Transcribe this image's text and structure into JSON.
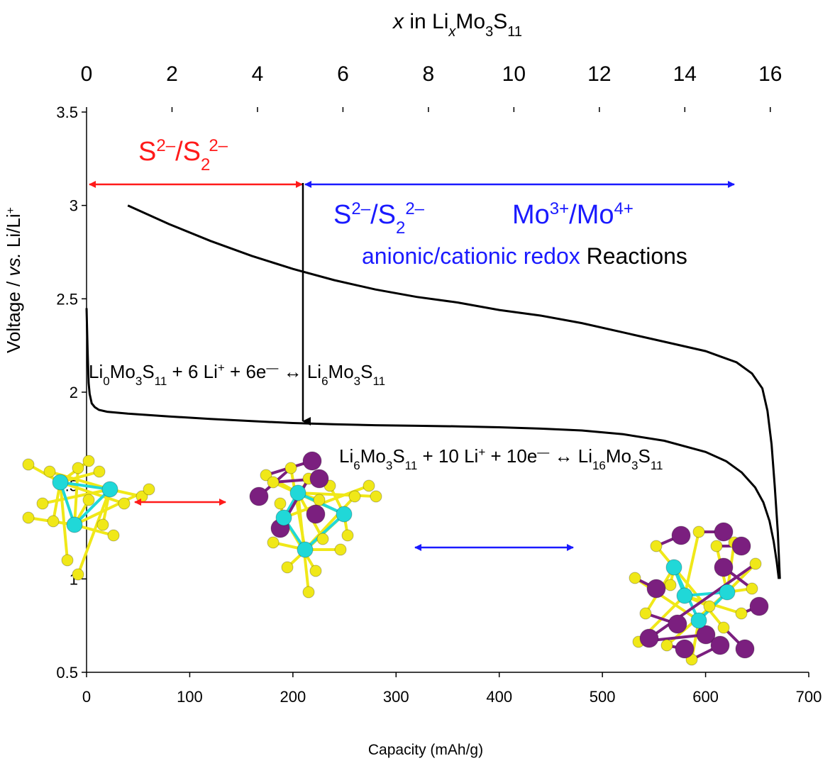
{
  "chart_data": {
    "type": "line",
    "title": "",
    "xlabel": "Capacity (mAh/g)",
    "ylabel": {
      "main": "Voltage / ",
      "italic": "vs.",
      "rest": " Li/Li",
      "sup": "+"
    },
    "xlim": [
      0,
      700
    ],
    "ylim": [
      0.5,
      3.5
    ],
    "x_ticks": [
      "0",
      "100",
      "200",
      "300",
      "400",
      "500",
      "600",
      "700"
    ],
    "y_ticks": [
      "0.5",
      "1",
      "1.5",
      "2",
      "2.5",
      "3",
      "3.5"
    ],
    "top_axis": {
      "label": {
        "italic_x": "x",
        "text1": " in Li",
        "sub_italic": "x",
        "text2": "Mo",
        "sub1": "3",
        "text3": "S",
        "sub2": "11"
      },
      "range": [
        0,
        16.2
      ],
      "ticks": [
        "0",
        "2",
        "4",
        "6",
        "8",
        "10",
        "12",
        "14",
        "16"
      ]
    },
    "grid": false,
    "legend": "none",
    "series": [
      {
        "color": "#000000",
        "x": [
          0,
          1,
          2,
          3,
          5,
          8,
          12,
          20,
          40,
          80,
          120,
          160,
          200,
          240,
          280,
          320,
          360,
          400,
          440,
          480,
          520,
          560,
          600,
          620,
          635,
          648,
          656,
          662,
          666,
          669,
          671
        ],
        "y": [
          2.45,
          2.22,
          2.05,
          1.99,
          1.94,
          1.92,
          1.905,
          1.895,
          1.885,
          1.87,
          1.857,
          1.845,
          1.835,
          1.828,
          1.823,
          1.82,
          1.817,
          1.812,
          1.805,
          1.795,
          1.775,
          1.74,
          1.68,
          1.63,
          1.57,
          1.49,
          1.41,
          1.31,
          1.2,
          1.09,
          1.0
        ]
      },
      {
        "color": "#000000",
        "x": [
          40,
          80,
          120,
          160,
          200,
          240,
          280,
          320,
          360,
          400,
          440,
          480,
          520,
          560,
          600,
          630,
          645,
          655,
          660,
          664,
          667,
          670,
          672
        ],
        "y": [
          3.0,
          2.9,
          2.81,
          2.73,
          2.66,
          2.6,
          2.55,
          2.51,
          2.48,
          2.44,
          2.41,
          2.37,
          2.32,
          2.27,
          2.22,
          2.16,
          2.1,
          2.02,
          1.9,
          1.72,
          1.5,
          1.25,
          1.0
        ]
      }
    ],
    "annotations": {
      "red_label": {
        "base": "S",
        "sup1": "2–",
        "slash": "/S",
        "sub": "2",
        "sup2": "2–"
      },
      "blue_label_1": {
        "base": "S",
        "sup1": "2–",
        "slash": "/S",
        "sub": "2",
        "sup2": "2–"
      },
      "blue_label_2": {
        "base": "Mo",
        "sup1": "3+",
        "slash": "/Mo",
        "sup2": "4+"
      },
      "redox_blue": "anionic/cationic redox",
      "redox_black": " Reactions",
      "reaction_1": {
        "p1": "Li",
        "s1": "0",
        "p2": "Mo",
        "s2": "3",
        "p3": "S",
        "s3": "11",
        "p4": " + 6 Li",
        "sup": "+",
        "p5": " + 6e",
        "sup2": "—",
        "p6": " ↔ Li",
        "s4": "6",
        "p7": "Mo",
        "s5": "3",
        "p8": "S",
        "s6": "11"
      },
      "reaction_2": {
        "p1": "Li",
        "s1": "6",
        "p2": "Mo",
        "s2": "3",
        "p3": "S",
        "s3": "11",
        "p4": " + 10 Li",
        "sup": "+",
        "p5": " + 10e",
        "sup2": "—",
        "p6": " ↔ Li",
        "s4": "16",
        "p7": "Mo",
        "s5": "3",
        "p8": "S",
        "s6": "11"
      }
    },
    "colors": {
      "red": "#ff1a1a",
      "blue": "#1a1aff",
      "sulfur": "#f0e818",
      "molybdenum": "#20d8d8",
      "lithium": "#7b1f7f"
    }
  }
}
